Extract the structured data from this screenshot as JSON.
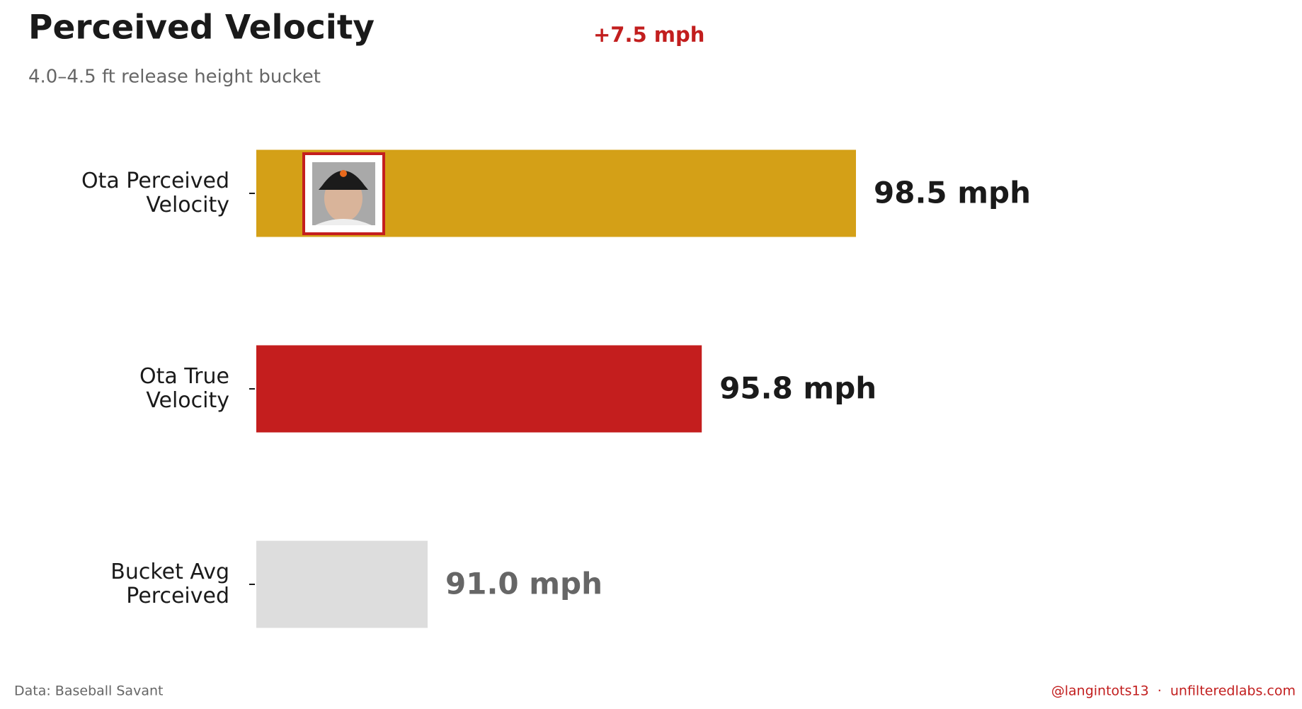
{
  "chart_data": {
    "type": "barh",
    "title": "Perceived Velocity",
    "subtitle": "4.0–4.5 ft release height bucket",
    "annotation": "+7.5 mph",
    "categories": [
      "Ota Perceived Velocity",
      "Ota True Velocity",
      "Bucket Avg Perceived"
    ],
    "values": [
      98.5,
      95.8,
      91.0
    ],
    "value_labels": [
      "98.5 mph",
      "95.8 mph",
      "91.0 mph"
    ],
    "colors": [
      "#d4a017",
      "#c41e1e",
      "#dddddd"
    ],
    "value_label_colors": [
      "#1a1a1a",
      "#1a1a1a",
      "#666666"
    ],
    "xlim": [
      88,
      106
    ],
    "source": "Data: Baseball Savant",
    "credit": "@langintots13  ·  unfilteredlabs.com"
  }
}
